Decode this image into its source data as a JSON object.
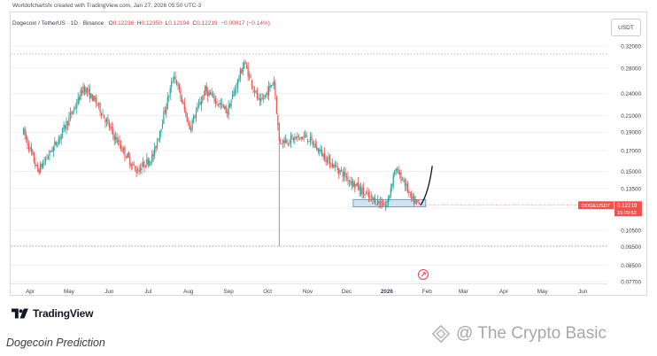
{
  "header": {
    "credit": "Worldofchartsfx created with TradingView.com, Jan 27, 2026 05:50 UTC-3",
    "symbol": "Dogecoin / TetherUS · 1D · Binance",
    "o_label": "O",
    "o_value": "0.12236",
    "h_label": "H",
    "h_value": "0.12350",
    "l_label": "L",
    "l_value": "0.12194",
    "c_label": "C",
    "c_value": "0.12219",
    "change": "−0.00017 (−0.14%)"
  },
  "currency": "USDT",
  "price_tag": {
    "name": "DOGEUSDT",
    "price": "0.12219",
    "countdown": "15:09:52"
  },
  "brand": {
    "name": "TradingView"
  },
  "caption": "Dogecoin Prediction",
  "watermark": "@ The Crypto Basic",
  "colors": {
    "up": "#26a69a",
    "down": "#ef5350",
    "tag": "#ef5350",
    "zone": "#a9cbe0",
    "arrow": "#131722"
  },
  "chart_data": {
    "type": "candlestick",
    "y_scale": "log",
    "ylim": [
      0.077,
      0.345
    ],
    "y_ticks": [
      "0.32000",
      "0.28000",
      "0.24000",
      "0.21000",
      "0.19000",
      "0.17000",
      "0.15000",
      "0.13500",
      "0.12000",
      "0.10500",
      "0.09500",
      "0.08500",
      "0.07700"
    ],
    "x_ticks": [
      "Apr",
      "May",
      "Jun",
      "Jul",
      "Aug",
      "Sep",
      "Oct",
      "Nov",
      "Dec",
      "2026",
      "Feb",
      "Mar",
      "Apr",
      "May",
      "Jun"
    ],
    "price_path": [
      [
        "2025-03-27",
        0.19
      ],
      [
        "2025-04-07",
        0.15
      ],
      [
        "2025-04-22",
        0.18
      ],
      [
        "2025-05-08",
        0.23
      ],
      [
        "2025-05-12",
        0.25
      ],
      [
        "2025-05-23",
        0.225
      ],
      [
        "2025-06-05",
        0.185
      ],
      [
        "2025-06-22",
        0.15
      ],
      [
        "2025-07-05",
        0.165
      ],
      [
        "2025-07-21",
        0.27
      ],
      [
        "2025-08-02",
        0.195
      ],
      [
        "2025-08-14",
        0.245
      ],
      [
        "2025-08-31",
        0.215
      ],
      [
        "2025-09-13",
        0.29
      ],
      [
        "2025-09-25",
        0.225
      ],
      [
        "2025-10-06",
        0.26
      ],
      [
        "2025-10-10",
        0.18
      ],
      [
        "2025-10-31",
        0.185
      ],
      [
        "2025-11-17",
        0.16
      ],
      [
        "2025-12-01",
        0.145
      ],
      [
        "2025-12-18",
        0.128
      ],
      [
        "2026-01-01",
        0.122
      ],
      [
        "2026-01-07",
        0.152
      ],
      [
        "2026-01-14",
        0.142
      ],
      [
        "2026-01-20",
        0.126
      ],
      [
        "2026-01-27",
        0.1222
      ]
    ],
    "last": {
      "date": "2026-01-27",
      "open": 0.12236,
      "high": 0.1235,
      "low": 0.12194,
      "close": 0.12219
    },
    "wick_extreme": {
      "date": "2025-10-10",
      "low": 0.0955
    },
    "dotted_levels": [
      0.305,
      0.0955
    ],
    "support_zone": {
      "from": "2025-12-06",
      "to": "2026-01-31",
      "low": 0.121,
      "high": 0.1265
    },
    "projection": [
      [
        "2026-01-27",
        0.1222
      ],
      [
        "2026-01-31",
        0.128
      ],
      [
        "2026-02-03",
        0.138
      ],
      [
        "2026-02-05",
        0.155
      ]
    ]
  }
}
